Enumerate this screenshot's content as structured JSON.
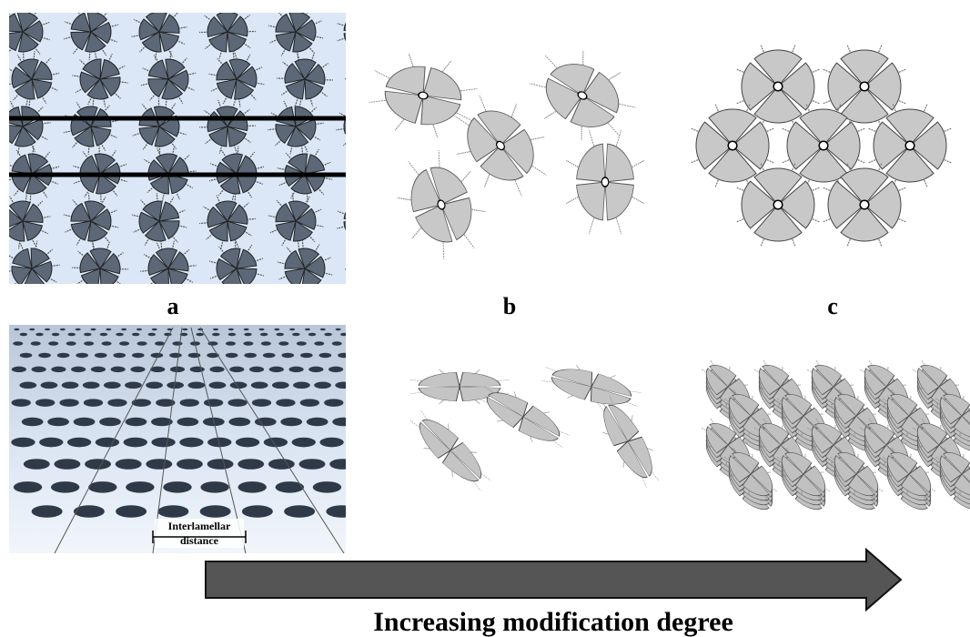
{
  "labels": [
    "a",
    "b",
    "c"
  ],
  "annotation": {
    "line1": "Interlamellar",
    "line2": "distance"
  },
  "arrow_label": "Increasing modification degree"
}
